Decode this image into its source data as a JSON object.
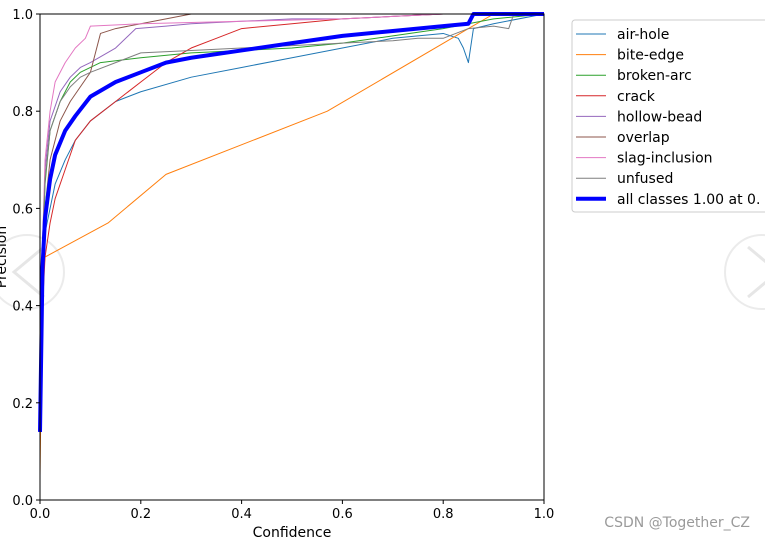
{
  "chart_data": {
    "type": "line",
    "title": "",
    "xlabel": "Confidence",
    "ylabel": "Precision",
    "xlim": [
      0,
      1
    ],
    "ylim": [
      0,
      1
    ],
    "xticks": [
      "0.0",
      "0.2",
      "0.4",
      "0.6",
      "0.8",
      "1.0"
    ],
    "yticks": [
      "0.0",
      "0.2",
      "0.4",
      "0.6",
      "0.8",
      "1.0"
    ],
    "legend_position": "outside-right",
    "series": [
      {
        "name": "air-hole",
        "color": "#1f77b4",
        "width": 1,
        "x": [
          0,
          0.005,
          0.01,
          0.02,
          0.03,
          0.05,
          0.07,
          0.1,
          0.15,
          0.2,
          0.3,
          0.4,
          0.5,
          0.6,
          0.7,
          0.8,
          0.83,
          0.84,
          0.85,
          0.86,
          0.9,
          1.0
        ],
        "y": [
          0.15,
          0.45,
          0.55,
          0.6,
          0.65,
          0.7,
          0.74,
          0.78,
          0.82,
          0.84,
          0.87,
          0.89,
          0.91,
          0.93,
          0.95,
          0.96,
          0.95,
          0.93,
          0.9,
          0.97,
          0.98,
          1.0
        ]
      },
      {
        "name": "bite-edge",
        "color": "#ff7f0e",
        "width": 1,
        "x": [
          0,
          0.005,
          0.01,
          0.135,
          0.25,
          0.57,
          0.85,
          0.9,
          1.0
        ],
        "y": [
          0.05,
          0.45,
          0.5,
          0.57,
          0.67,
          0.8,
          0.97,
          1.0,
          1.0
        ]
      },
      {
        "name": "broken-arc",
        "color": "#2ca02c",
        "width": 1,
        "x": [
          0,
          0.01,
          0.02,
          0.04,
          0.06,
          0.08,
          0.1,
          0.12,
          0.2,
          0.3,
          0.4,
          0.5,
          0.6,
          0.7,
          0.8,
          0.9,
          1.0
        ],
        "y": [
          0.3,
          0.65,
          0.76,
          0.82,
          0.86,
          0.88,
          0.89,
          0.9,
          0.91,
          0.92,
          0.925,
          0.93,
          0.94,
          0.955,
          0.97,
          0.99,
          1.0
        ]
      },
      {
        "name": "crack",
        "color": "#d62728",
        "width": 1,
        "x": [
          0,
          0.01,
          0.02,
          0.03,
          0.05,
          0.07,
          0.1,
          0.15,
          0.2,
          0.25,
          0.3,
          0.35,
          0.4,
          0.5,
          0.6,
          0.7,
          0.8,
          0.9,
          1.0
        ],
        "y": [
          0.3,
          0.5,
          0.57,
          0.62,
          0.68,
          0.74,
          0.78,
          0.82,
          0.86,
          0.9,
          0.93,
          0.95,
          0.97,
          0.98,
          0.99,
          0.995,
          1.0,
          1.0,
          1.0
        ]
      },
      {
        "name": "hollow-bead",
        "color": "#9467bd",
        "width": 1,
        "x": [
          0,
          0.01,
          0.02,
          0.04,
          0.06,
          0.08,
          0.1,
          0.15,
          0.19,
          0.25,
          0.3,
          0.4,
          0.5,
          0.6,
          0.7,
          0.8,
          1.0
        ],
        "y": [
          0.35,
          0.68,
          0.78,
          0.84,
          0.87,
          0.89,
          0.9,
          0.93,
          0.97,
          0.975,
          0.98,
          0.985,
          0.99,
          0.99,
          0.995,
          1.0,
          1.0
        ]
      },
      {
        "name": "overlap",
        "color": "#8c564b",
        "width": 1,
        "x": [
          0,
          0.01,
          0.02,
          0.04,
          0.06,
          0.08,
          0.1,
          0.12,
          0.15,
          0.2,
          0.25,
          0.3,
          0.5,
          0.8,
          1.0
        ],
        "y": [
          0.3,
          0.6,
          0.7,
          0.78,
          0.82,
          0.85,
          0.88,
          0.96,
          0.97,
          0.98,
          0.99,
          1.0,
          1.0,
          1.0,
          1.0
        ]
      },
      {
        "name": "slag-inclusion",
        "color": "#e377c2",
        "width": 1,
        "x": [
          0,
          0.01,
          0.02,
          0.03,
          0.05,
          0.07,
          0.09,
          0.1,
          0.2,
          0.4,
          0.6,
          0.8,
          1.0
        ],
        "y": [
          0.35,
          0.7,
          0.8,
          0.86,
          0.9,
          0.93,
          0.95,
          0.975,
          0.98,
          0.985,
          0.99,
          1.0,
          1.0
        ]
      },
      {
        "name": "unfused",
        "color": "#7f7f7f",
        "width": 1,
        "x": [
          0,
          0.01,
          0.02,
          0.04,
          0.06,
          0.08,
          0.1,
          0.15,
          0.2,
          0.3,
          0.4,
          0.5,
          0.6,
          0.7,
          0.75,
          0.8,
          0.85,
          0.9,
          0.93,
          0.94,
          1.0
        ],
        "y": [
          0.4,
          0.66,
          0.76,
          0.82,
          0.85,
          0.87,
          0.88,
          0.9,
          0.92,
          0.925,
          0.93,
          0.935,
          0.94,
          0.945,
          0.95,
          0.95,
          0.97,
          0.975,
          0.97,
          1.0,
          1.0
        ]
      },
      {
        "name": "all classes 1.00 at 0.",
        "color": "#0000ff",
        "width": 4,
        "x": [
          0,
          0.005,
          0.01,
          0.015,
          0.02,
          0.03,
          0.05,
          0.07,
          0.1,
          0.15,
          0.2,
          0.25,
          0.3,
          0.4,
          0.5,
          0.6,
          0.7,
          0.8,
          0.85,
          0.86,
          0.9,
          1.0
        ],
        "y": [
          0.14,
          0.48,
          0.58,
          0.62,
          0.66,
          0.71,
          0.76,
          0.79,
          0.83,
          0.86,
          0.88,
          0.9,
          0.91,
          0.925,
          0.94,
          0.955,
          0.965,
          0.975,
          0.98,
          1.0,
          1.0,
          1.0
        ]
      }
    ]
  },
  "watermark": "CSDN @Together_CZ"
}
